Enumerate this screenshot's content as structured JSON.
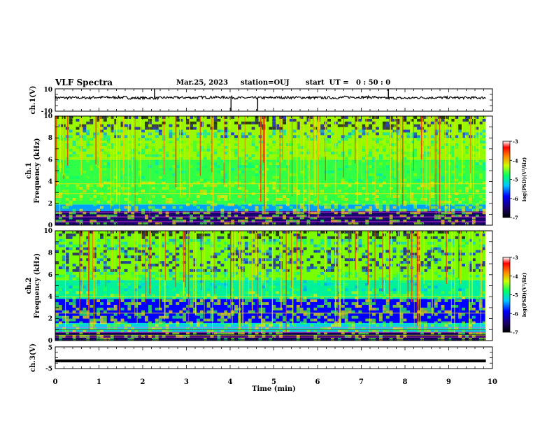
{
  "header": {
    "title": "VLF Spectra",
    "date": "Mar.25, 2023",
    "station": "station=OUJ",
    "start": "start  UT =   0 : 50 : 0"
  },
  "chart_data": [
    {
      "type": "line",
      "panel": "ch1-waveform",
      "ylabel": "ch.1(V)",
      "ylim": [
        -10,
        10
      ],
      "yticks": [
        "10",
        "-10"
      ],
      "xlim": [
        0,
        10
      ],
      "series": [
        {
          "values": [
            2.0,
            2.3,
            1.8,
            2.1,
            2.4,
            1.9,
            2.2,
            2.0,
            2.5,
            1.7,
            2.1,
            2.0
          ]
        }
      ],
      "spikes": [
        {
          "x": 2.27,
          "y": 10
        },
        {
          "x": 4.02,
          "y": -10
        },
        {
          "x": 4.63,
          "y": -10
        },
        {
          "x": 7.62,
          "y": 10
        }
      ]
    },
    {
      "type": "heatmap",
      "panel": "ch1-spectrogram",
      "ylabel": "ch.1\nFrequency  (kHz)",
      "ylim": [
        0,
        10
      ],
      "yticks": [
        "0",
        "2",
        "4",
        "6",
        "8",
        "10"
      ],
      "xlim": [
        0,
        9.85
      ],
      "colorbar": {
        "label": "log(PSD)(V²/Hz)",
        "range": [
          -7,
          -3
        ],
        "ticks": [
          "-3",
          "-4",
          "-5",
          "-6",
          "-7"
        ]
      },
      "bands": [
        {
          "from_khz": 0,
          "to_khz": 1.3,
          "level": -6.6
        },
        {
          "from_khz": 1.3,
          "to_khz": 1.9,
          "level": -5.8
        },
        {
          "from_khz": 1.9,
          "to_khz": 6.0,
          "level": -5.1
        },
        {
          "from_khz": 6.0,
          "to_khz": 10,
          "level": -4.7
        }
      ],
      "lines_khz": [
        2.9,
        3.8
      ]
    },
    {
      "type": "heatmap",
      "panel": "ch2-spectrogram",
      "ylabel": "ch.2\nFrequency  (kHz)",
      "ylim": [
        0,
        10
      ],
      "yticks": [
        "0",
        "2",
        "4",
        "6",
        "8",
        "10"
      ],
      "xlim": [
        0,
        9.85
      ],
      "colorbar": {
        "label": "log(PSD)(V²/Hz)",
        "range": [
          -7,
          -3
        ],
        "ticks": [
          "-3",
          "-4",
          "-5",
          "-6",
          "-7"
        ]
      },
      "bands": [
        {
          "from_khz": 0,
          "to_khz": 0.8,
          "level": -6.7
        },
        {
          "from_khz": 0.8,
          "to_khz": 1.6,
          "level": -5.6
        },
        {
          "from_khz": 1.6,
          "to_khz": 3.8,
          "level": -6.2
        },
        {
          "from_khz": 3.8,
          "to_khz": 5.5,
          "level": -5.4
        },
        {
          "from_khz": 5.5,
          "to_khz": 10,
          "level": -4.8
        }
      ],
      "lines_khz": [
        0.5,
        1.0,
        2.5,
        4.0
      ]
    },
    {
      "type": "line",
      "panel": "ch3-waveform",
      "ylabel": "ch.3(V)",
      "ylim": [
        -5,
        5
      ],
      "yticks": [
        "5",
        "-5"
      ],
      "xlim": [
        0,
        10
      ],
      "series": [
        {
          "values": [
            -1.5,
            -1.5,
            -1.5,
            -1.5,
            -1.5,
            -1.5,
            -1.5,
            -1.5,
            -1.5,
            -1.5,
            -1.5
          ]
        }
      ]
    }
  ],
  "time_axis": {
    "xlabel": "Time  (min)",
    "ticks": [
      "0",
      "1",
      "2",
      "3",
      "4",
      "5",
      "6",
      "7",
      "8",
      "9",
      "10"
    ]
  }
}
